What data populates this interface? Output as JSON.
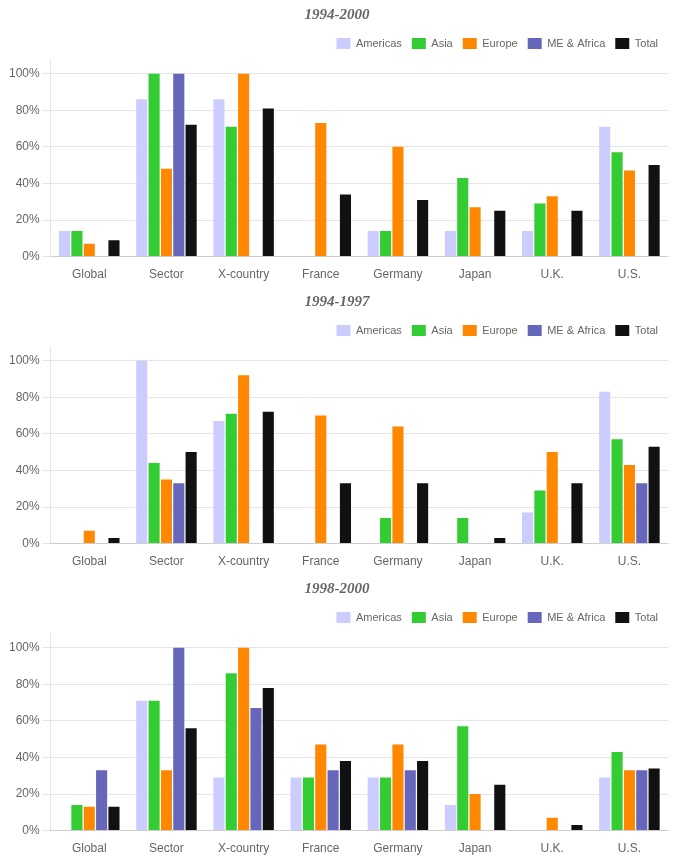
{
  "chart_data": [
    {
      "type": "bar",
      "title": "1994-2000",
      "categories": [
        "Global",
        "Sector",
        "X-country",
        "France",
        "Germany",
        "Japan",
        "U.K.",
        "U.S."
      ],
      "series": [
        {
          "name": "Americas",
          "color": "#ccccff",
          "values": [
            14,
            86,
            86,
            0,
            14,
            14,
            14,
            71
          ]
        },
        {
          "name": "Asia",
          "color": "#33cc33",
          "values": [
            14,
            100,
            71,
            0,
            14,
            43,
            29,
            57
          ]
        },
        {
          "name": "Europe",
          "color": "#ff8800",
          "values": [
            7,
            48,
            100,
            73,
            60,
            27,
            33,
            47
          ]
        },
        {
          "name": "ME & Africa",
          "color": "#6666bb",
          "values": [
            0,
            100,
            0,
            0,
            0,
            0,
            0,
            0
          ]
        },
        {
          "name": "Total",
          "color": "#111111",
          "values": [
            9,
            72,
            81,
            34,
            31,
            25,
            25,
            50
          ]
        }
      ],
      "ylim": [
        0,
        108
      ],
      "yticks": [
        {
          "value": 0,
          "label": "0%"
        },
        {
          "value": 20,
          "label": "20%"
        },
        {
          "value": 40,
          "label": "40%"
        },
        {
          "value": 60,
          "label": "60%"
        },
        {
          "value": 80,
          "label": "80%"
        },
        {
          "value": 100,
          "label": "100%"
        }
      ],
      "grid": true,
      "legend": "upper right"
    },
    {
      "type": "bar",
      "title": "1994-1997",
      "categories": [
        "Global",
        "Sector",
        "X-country",
        "France",
        "Germany",
        "Japan",
        "U.K.",
        "U.S."
      ],
      "series": [
        {
          "name": "Americas",
          "color": "#ccccff",
          "values": [
            0,
            100,
            67,
            0,
            0,
            0,
            17,
            83
          ]
        },
        {
          "name": "Asia",
          "color": "#33cc33",
          "values": [
            0,
            44,
            71,
            0,
            14,
            14,
            29,
            57
          ]
        },
        {
          "name": "Europe",
          "color": "#ff8800",
          "values": [
            7,
            35,
            92,
            70,
            64,
            0,
            50,
            43
          ]
        },
        {
          "name": "ME & Africa",
          "color": "#6666bb",
          "values": [
            0,
            33,
            0,
            0,
            0,
            0,
            0,
            33
          ]
        },
        {
          "name": "Total",
          "color": "#111111",
          "values": [
            3,
            50,
            72,
            33,
            33,
            3,
            33,
            53
          ]
        }
      ],
      "ylim": [
        0,
        108
      ],
      "yticks": [
        {
          "value": 0,
          "label": "0%"
        },
        {
          "value": 20,
          "label": "20%"
        },
        {
          "value": 40,
          "label": "40%"
        },
        {
          "value": 60,
          "label": "60%"
        },
        {
          "value": 80,
          "label": "80%"
        },
        {
          "value": 100,
          "label": "100%"
        }
      ],
      "grid": true,
      "legend": "upper right"
    },
    {
      "type": "bar",
      "title": "1998-2000",
      "categories": [
        "Global",
        "Sector",
        "X-country",
        "France",
        "Germany",
        "Japan",
        "U.K.",
        "U.S."
      ],
      "series": [
        {
          "name": "Americas",
          "color": "#ccccff",
          "values": [
            0,
            71,
            29,
            29,
            29,
            14,
            0,
            29
          ]
        },
        {
          "name": "Asia",
          "color": "#33cc33",
          "values": [
            14,
            71,
            86,
            29,
            29,
            57,
            0,
            43
          ]
        },
        {
          "name": "Europe",
          "color": "#ff8800",
          "values": [
            13,
            33,
            100,
            47,
            47,
            20,
            7,
            33
          ]
        },
        {
          "name": "ME & Africa",
          "color": "#6666bb",
          "values": [
            33,
            100,
            67,
            33,
            33,
            0,
            0,
            33
          ]
        },
        {
          "name": "Total",
          "color": "#111111",
          "values": [
            13,
            56,
            78,
            38,
            38,
            25,
            3,
            34
          ]
        }
      ],
      "ylim": [
        0,
        108
      ],
      "yticks": [
        {
          "value": 0,
          "label": "0%"
        },
        {
          "value": 20,
          "label": "20%"
        },
        {
          "value": 40,
          "label": "40%"
        },
        {
          "value": 60,
          "label": "60%"
        },
        {
          "value": 80,
          "label": "80%"
        },
        {
          "value": 100,
          "label": "100%"
        }
      ],
      "grid": true,
      "legend": "upper right"
    }
  ]
}
